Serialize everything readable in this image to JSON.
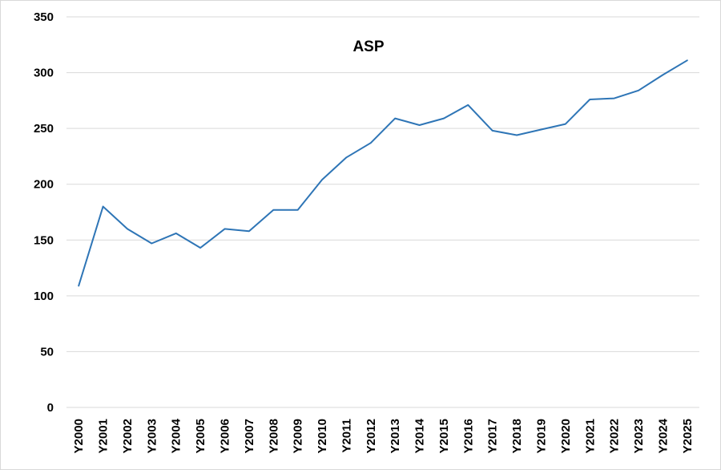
{
  "chart_data": {
    "type": "line",
    "title": "ASP",
    "xlabel": "",
    "ylabel": "",
    "categories": [
      "Y2000",
      "Y2001",
      "Y2002",
      "Y2003",
      "Y2004",
      "Y2005",
      "Y2006",
      "Y2007",
      "Y2008",
      "Y2009",
      "Y2010",
      "Y2011",
      "Y2012",
      "Y2013",
      "Y2014",
      "Y2015",
      "Y2016",
      "Y2017",
      "Y2018",
      "Y2019",
      "Y2020",
      "Y2021",
      "Y2022",
      "Y2023",
      "Y2024",
      "Y2025"
    ],
    "series": [
      {
        "values": [
          109,
          180,
          160,
          147,
          156,
          143,
          160,
          158,
          177,
          177,
          204,
          224,
          237,
          259,
          253,
          259,
          271,
          248,
          244,
          249,
          254,
          276,
          277,
          284,
          298,
          311
        ],
        "color": "#2e75b6"
      }
    ],
    "ylim": [
      0,
      350
    ],
    "yticks": [
      0,
      50,
      100,
      150,
      200,
      250,
      300,
      350
    ],
    "grid": true,
    "legend": "none"
  }
}
